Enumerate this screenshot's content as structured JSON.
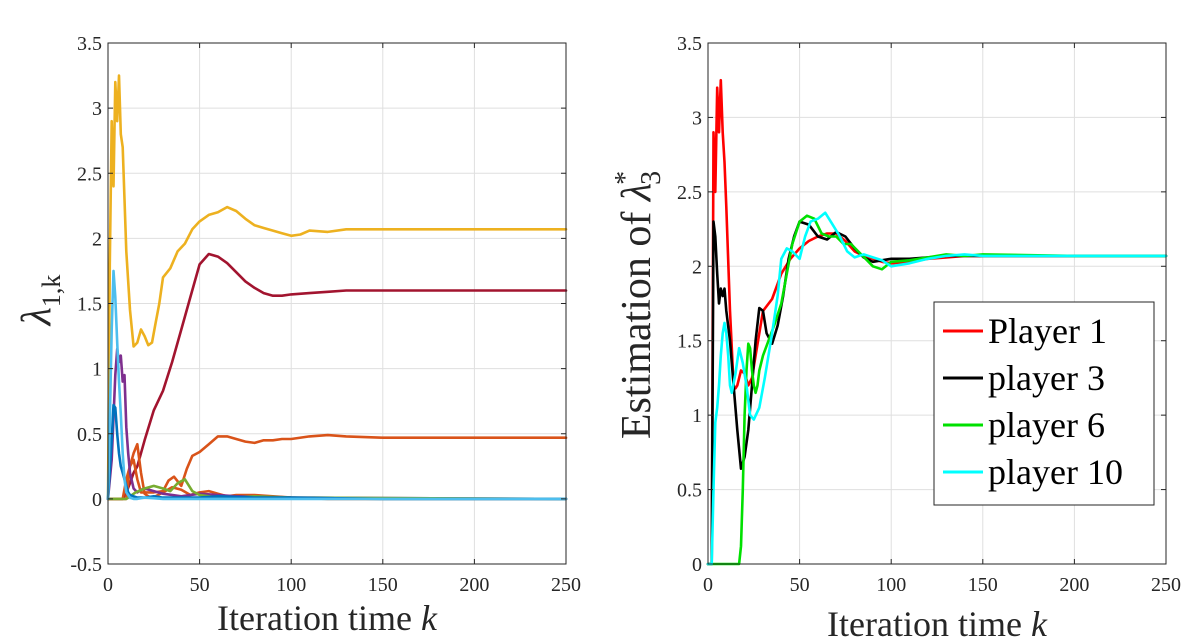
{
  "chart_data": [
    {
      "type": "line",
      "id": "left",
      "xlabel": "Iteration time",
      "xlabel_var": "k",
      "ylabel_base": "λ",
      "ylabel_sub": "1,k",
      "xlim": [
        0,
        250
      ],
      "ylim": [
        -0.5,
        3.5
      ],
      "xticks": [
        0,
        50,
        100,
        150,
        200,
        250
      ],
      "xtick_labels": [
        "0",
        "50",
        "100",
        "150",
        "200",
        "250"
      ],
      "yticks": [
        -0.5,
        0,
        0.5,
        1,
        1.5,
        2,
        2.5,
        3,
        3.5
      ],
      "ytick_labels": [
        "-0.5",
        "0",
        "0.5",
        "1",
        "1.5",
        "2",
        "2.5",
        "3",
        "3.5"
      ],
      "grid": true,
      "series": [
        {
          "name": "yellow",
          "color": "#EDB120",
          "x": [
            0,
            1,
            2,
            3,
            4,
            5,
            6,
            7,
            8,
            9,
            10,
            12,
            14,
            16,
            18,
            20,
            22,
            24,
            26,
            28,
            30,
            34,
            38,
            42,
            46,
            50,
            55,
            60,
            65,
            70,
            75,
            80,
            85,
            90,
            95,
            100,
            105,
            110,
            120,
            130,
            150,
            200,
            250
          ],
          "y": [
            0,
            1.8,
            2.9,
            2.4,
            3.2,
            2.9,
            3.25,
            2.8,
            2.7,
            2.3,
            1.9,
            1.45,
            1.17,
            1.2,
            1.3,
            1.25,
            1.18,
            1.2,
            1.35,
            1.5,
            1.7,
            1.77,
            1.9,
            1.96,
            2.07,
            2.13,
            2.18,
            2.2,
            2.24,
            2.21,
            2.15,
            2.1,
            2.08,
            2.06,
            2.04,
            2.02,
            2.03,
            2.06,
            2.05,
            2.07,
            2.07,
            2.07,
            2.07
          ]
        },
        {
          "name": "dark red",
          "color": "#A2142F",
          "x": [
            0,
            8,
            10,
            12,
            14,
            16,
            20,
            25,
            30,
            35,
            40,
            45,
            50,
            55,
            60,
            65,
            70,
            75,
            80,
            85,
            90,
            95,
            100,
            110,
            120,
            130,
            150,
            200,
            250
          ],
          "y": [
            0,
            0,
            0.05,
            0.12,
            0.2,
            0.25,
            0.45,
            0.68,
            0.83,
            1.05,
            1.3,
            1.55,
            1.8,
            1.88,
            1.86,
            1.81,
            1.74,
            1.67,
            1.62,
            1.58,
            1.56,
            1.56,
            1.57,
            1.58,
            1.59,
            1.6,
            1.6,
            1.6,
            1.6
          ]
        },
        {
          "name": "orange",
          "color": "#D95319",
          "x": [
            0,
            10,
            12,
            14,
            16,
            18,
            20,
            25,
            30,
            33,
            36,
            40,
            43,
            46,
            50,
            55,
            60,
            65,
            70,
            75,
            80,
            85,
            90,
            95,
            100,
            110,
            120,
            130,
            150,
            200,
            250
          ],
          "y": [
            0,
            0,
            0.25,
            0.3,
            0.15,
            0.05,
            0.05,
            0.05,
            0.06,
            0.14,
            0.17,
            0.1,
            0.23,
            0.33,
            0.36,
            0.42,
            0.48,
            0.48,
            0.46,
            0.44,
            0.43,
            0.45,
            0.45,
            0.46,
            0.46,
            0.48,
            0.49,
            0.48,
            0.47,
            0.47,
            0.47
          ]
        },
        {
          "name": "orange 2",
          "color": "#D95319",
          "x": [
            0,
            8,
            10,
            14,
            16,
            18,
            20,
            22,
            24,
            26,
            30,
            35,
            40,
            45,
            50,
            55,
            60,
            65,
            70,
            80,
            100,
            120,
            250
          ],
          "y": [
            0,
            0,
            0.15,
            0.35,
            0.42,
            0.2,
            0.04,
            0.02,
            0.01,
            0.02,
            0.05,
            0.09,
            0.07,
            0.03,
            0.05,
            0.06,
            0.04,
            0.02,
            0.03,
            0.03,
            0.01,
            0,
            0
          ]
        },
        {
          "name": "purple",
          "color": "#7E2F8E",
          "x": [
            0,
            2,
            4,
            5,
            6,
            7,
            8,
            9,
            10,
            11,
            12,
            14,
            16,
            18,
            20,
            30,
            40,
            50,
            60,
            70,
            80,
            100,
            250
          ],
          "y": [
            0,
            0.3,
            0.95,
            1.15,
            1.05,
            1.1,
            0.9,
            0.95,
            0.55,
            0.35,
            0.2,
            0.08,
            0.05,
            0.07,
            0.08,
            0.04,
            0.02,
            0.04,
            0.03,
            0.02,
            0.02,
            0.01,
            0
          ]
        },
        {
          "name": "green",
          "color": "#77AC30",
          "x": [
            0,
            10,
            15,
            20,
            25,
            30,
            34,
            38,
            42,
            46,
            50,
            55,
            60,
            70,
            80,
            100,
            250
          ],
          "y": [
            0,
            0,
            0.05,
            0.08,
            0.1,
            0.08,
            0.06,
            0.12,
            0.15,
            0.06,
            0.03,
            0.02,
            0.01,
            0.01,
            0.02,
            0.01,
            0
          ]
        },
        {
          "name": "blue",
          "color": "#0072BD",
          "x": [
            0,
            2,
            3,
            4,
            5,
            6,
            7,
            8,
            9,
            10,
            11,
            12,
            14,
            16,
            20,
            25,
            30,
            40,
            50,
            60,
            80,
            100,
            150,
            250
          ],
          "y": [
            0,
            0.45,
            0.72,
            0.7,
            0.5,
            0.35,
            0.25,
            0.2,
            0.15,
            0.1,
            0.05,
            0.03,
            0.02,
            0.01,
            0.01,
            0.02,
            0.01,
            0.01,
            0.01,
            0.02,
            0.01,
            0.01,
            0,
            0
          ]
        },
        {
          "name": "light blue",
          "color": "#4DBEEE",
          "x": [
            0,
            1,
            2,
            3,
            4,
            5,
            6,
            7,
            8,
            9,
            10,
            12,
            14,
            16,
            20,
            30,
            50,
            100,
            250
          ],
          "y": [
            0,
            0.6,
            1.3,
            1.75,
            1.55,
            1.2,
            0.9,
            0.65,
            0.35,
            0.15,
            0.05,
            0.01,
            0,
            0,
            0.01,
            0,
            0,
            0,
            0
          ]
        }
      ]
    },
    {
      "type": "line",
      "id": "right",
      "xlabel": "Iteration time",
      "xlabel_var": "k",
      "ylabel": "Estimation of",
      "ylabel_sym": "λ",
      "ylabel_sub": "3",
      "ylabel_sup": "*",
      "xlim": [
        0,
        250
      ],
      "ylim": [
        0,
        3.5
      ],
      "xticks": [
        0,
        50,
        100,
        150,
        200,
        250
      ],
      "xtick_labels": [
        "0",
        "50",
        "100",
        "150",
        "200",
        "250"
      ],
      "yticks": [
        0,
        0.5,
        1,
        1.5,
        2,
        2.5,
        3,
        3.5
      ],
      "ytick_labels": [
        "0",
        "0.5",
        "1",
        "1.5",
        "2",
        "2.5",
        "3",
        "3.5"
      ],
      "grid": true,
      "legend_position": "lower-right",
      "series": [
        {
          "name": "Player 1",
          "color": "#ff0000",
          "x": [
            0,
            2,
            3,
            4,
            5,
            6,
            7,
            8,
            9,
            10,
            12,
            14,
            15,
            16,
            18,
            20,
            22,
            24,
            26,
            28,
            30,
            35,
            40,
            45,
            50,
            55,
            60,
            65,
            70,
            75,
            80,
            85,
            90,
            95,
            100,
            110,
            120,
            130,
            140,
            150,
            200,
            250
          ],
          "y": [
            0,
            0,
            2.9,
            2.5,
            3.2,
            2.9,
            3.25,
            2.9,
            2.7,
            2.4,
            1.7,
            1.2,
            1.18,
            1.2,
            1.3,
            1.28,
            1.2,
            1.25,
            1.4,
            1.55,
            1.7,
            1.78,
            1.95,
            2.05,
            2.12,
            2.17,
            2.2,
            2.22,
            2.22,
            2.17,
            2.1,
            2.07,
            2.05,
            2.03,
            2.02,
            2.03,
            2.05,
            2.06,
            2.07,
            2.07,
            2.07,
            2.07
          ]
        },
        {
          "name": "player 3",
          "color": "#000000",
          "x": [
            0,
            2,
            3,
            4,
            5,
            6,
            7,
            8,
            9,
            10,
            12,
            14,
            16,
            18,
            20,
            22,
            24,
            26,
            28,
            30,
            32,
            35,
            38,
            41,
            44,
            47,
            50,
            55,
            60,
            65,
            70,
            75,
            80,
            85,
            90,
            95,
            100,
            110,
            120,
            130,
            140,
            150,
            200,
            250
          ],
          "y": [
            0,
            0,
            2.3,
            2.2,
            1.95,
            1.75,
            1.85,
            1.8,
            1.85,
            1.7,
            1.5,
            1.2,
            0.9,
            0.64,
            0.72,
            0.9,
            1.2,
            1.5,
            1.72,
            1.7,
            1.55,
            1.48,
            1.6,
            1.8,
            2.05,
            2.2,
            2.3,
            2.28,
            2.2,
            2.18,
            2.23,
            2.2,
            2.12,
            2.06,
            2.03,
            2.04,
            2.05,
            2.05,
            2.06,
            2.07,
            2.07,
            2.07,
            2.07,
            2.07
          ]
        },
        {
          "name": "player 6",
          "color": "#00e000",
          "x": [
            0,
            17,
            18,
            19,
            20,
            21,
            22,
            23,
            24,
            25,
            26,
            27,
            28,
            30,
            33,
            36,
            40,
            43,
            46,
            50,
            54,
            58,
            62,
            66,
            70,
            74,
            78,
            82,
            86,
            90,
            95,
            100,
            110,
            120,
            130,
            140,
            150,
            200,
            250
          ],
          "y": [
            0,
            0,
            0.12,
            0.5,
            1.0,
            1.3,
            1.48,
            1.45,
            1.3,
            1.2,
            1.15,
            1.2,
            1.3,
            1.4,
            1.5,
            1.6,
            1.75,
            1.95,
            2.15,
            2.3,
            2.34,
            2.32,
            2.22,
            2.2,
            2.2,
            2.15,
            2.15,
            2.1,
            2.05,
            2.0,
            1.98,
            2.03,
            2.04,
            2.06,
            2.08,
            2.07,
            2.08,
            2.07,
            2.07
          ]
        },
        {
          "name": "player 10",
          "color": "#00ffff",
          "x": [
            0,
            2,
            3,
            4,
            5,
            6,
            7,
            8,
            9,
            10,
            11,
            12,
            13,
            15,
            17,
            19,
            21,
            23,
            25,
            28,
            31,
            35,
            38,
            40,
            43,
            46,
            50,
            53,
            56,
            60,
            64,
            68,
            72,
            76,
            80,
            85,
            90,
            95,
            100,
            110,
            120,
            130,
            140,
            150,
            200,
            250
          ],
          "y": [
            0,
            0,
            0.5,
            0.95,
            1.05,
            1.2,
            1.4,
            1.55,
            1.62,
            1.55,
            1.4,
            1.2,
            1.15,
            1.28,
            1.45,
            1.35,
            1.2,
            1.0,
            0.97,
            1.05,
            1.25,
            1.55,
            1.8,
            2.05,
            2.12,
            2.1,
            2.05,
            2.2,
            2.3,
            2.32,
            2.36,
            2.28,
            2.2,
            2.1,
            2.06,
            2.08,
            2.06,
            2.04,
            2.0,
            2.02,
            2.05,
            2.07,
            2.08,
            2.07,
            2.07,
            2.07
          ]
        }
      ]
    }
  ]
}
